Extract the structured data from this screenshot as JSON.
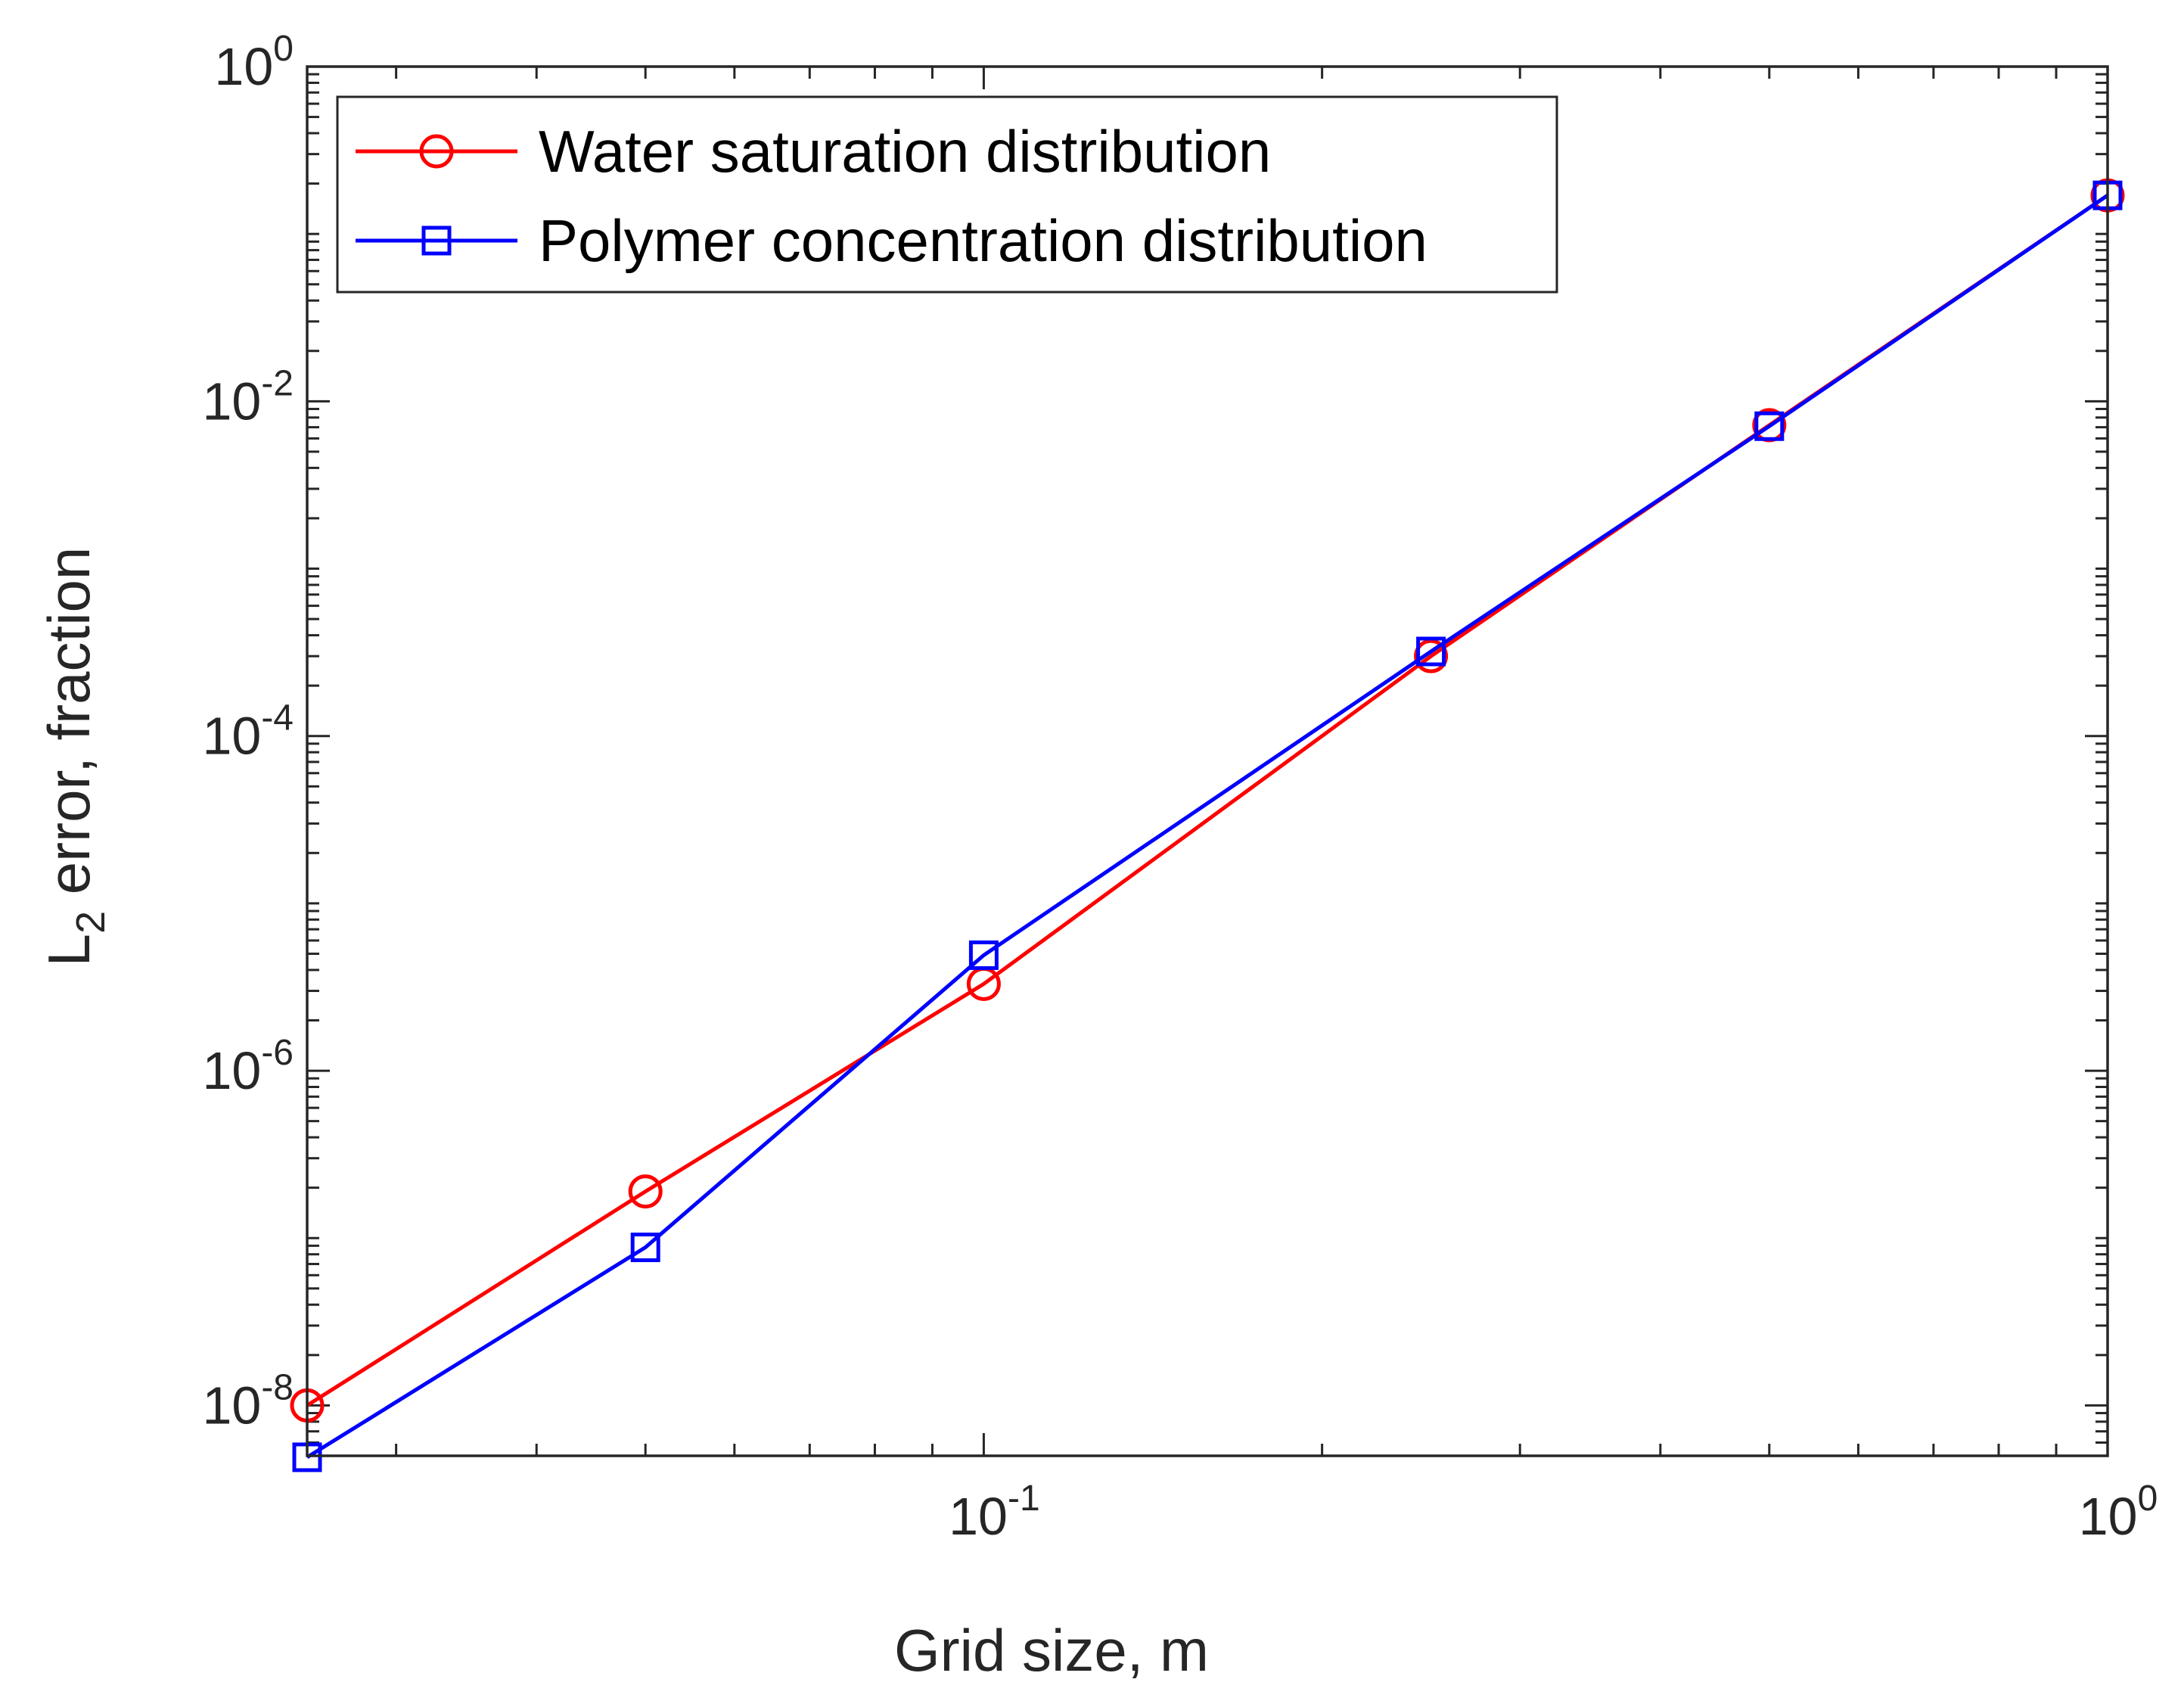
{
  "chart_data": {
    "type": "line",
    "xlabel": "Grid size, m",
    "ylabel": {
      "base": "L",
      "subscript": "2",
      "rest": " error, fraction"
    },
    "x_scale": "log",
    "y_scale": "log",
    "xlim": [
      0.025,
      1.0
    ],
    "ylim": [
      5e-09,
      1.0
    ],
    "x_ticks": [
      {
        "value": 0.1,
        "base": "10",
        "exp": "-1"
      },
      {
        "value": 1.0,
        "base": "10",
        "exp": "0"
      }
    ],
    "y_ticks": [
      {
        "value": 1e-08,
        "base": "10",
        "exp": "-8"
      },
      {
        "value": 1e-06,
        "base": "10",
        "exp": "-6"
      },
      {
        "value": 0.0001,
        "base": "10",
        "exp": "-4"
      },
      {
        "value": 0.01,
        "base": "10",
        "exp": "-2"
      },
      {
        "value": 1.0,
        "base": "10",
        "exp": "0"
      }
    ],
    "grid": false,
    "box": true,
    "legend_position": "top-left",
    "series": [
      {
        "name": "Water saturation distribution",
        "color": "#ff0000",
        "marker": "circle",
        "x": [
          0.025,
          0.05,
          0.1,
          0.25,
          0.5,
          1.0
        ],
        "y": [
          1e-08,
          1.9e-07,
          3.3e-06,
          0.0003,
          0.0072,
          0.17
        ]
      },
      {
        "name": "Polymer concentration distribution",
        "color": "#0000ff",
        "marker": "square",
        "x": [
          0.025,
          0.05,
          0.1,
          0.25,
          0.5,
          1.0
        ],
        "y": [
          4.9e-09,
          8.8e-08,
          4.9e-06,
          0.00032,
          0.0071,
          0.17
        ]
      }
    ]
  }
}
